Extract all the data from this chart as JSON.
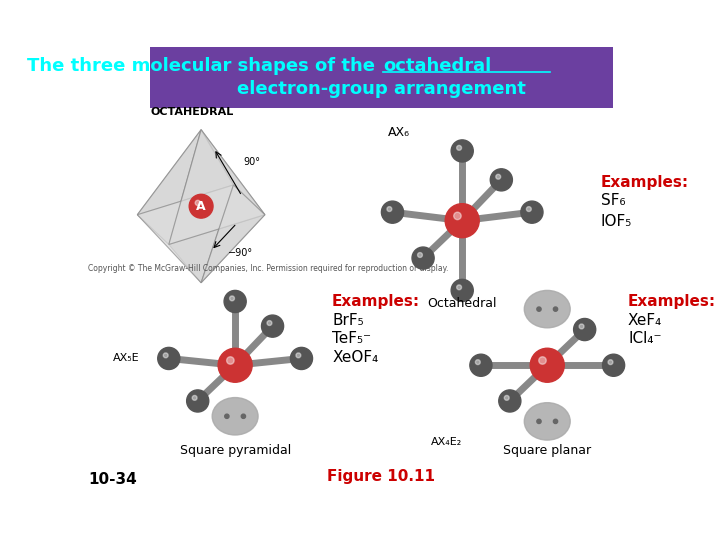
{
  "title_bg_color": "#6B3FA0",
  "title_text_color": "#00FFFF",
  "bg_color": "#FFFFFF",
  "shape_label_octahedral": "Octahedral",
  "shape_label_sq_pyr": "Square pyramidal",
  "shape_label_sq_planar": "Square planar",
  "shape_label_OCTAHEDRAL": "OCTAHEDRAL",
  "examples1_header": "Examples:",
  "examples1_lines": [
    "SF₆",
    "IOF₅"
  ],
  "examples2_header": "Examples:",
  "examples2_lines": [
    "BrF₅",
    "TeF₅⁻",
    "XeOF₄"
  ],
  "examples3_header": "Examples:",
  "examples3_lines": [
    "XeF₄",
    "ICl₄⁻"
  ],
  "examples_header_color": "#CC0000",
  "examples_text_color": "#000000",
  "copyright_text": "Copyright © The McGraw-Hill Companies, Inc. Permission required for reproduction or display.",
  "figure_label": "Figure 10.11",
  "figure_label_color": "#CC0000",
  "slide_number": "10-34",
  "slide_number_color": "#000000",
  "angle_label1": "90°",
  "angle_label2": "−90°",
  "center_label_A": "A",
  "atom_center_color": "#CC3333",
  "atom_outer_color": "#555555",
  "lone_pair_color": "#AAAAAA",
  "bond_color": "#888888",
  "octahedron_color": "#AAAAAA"
}
